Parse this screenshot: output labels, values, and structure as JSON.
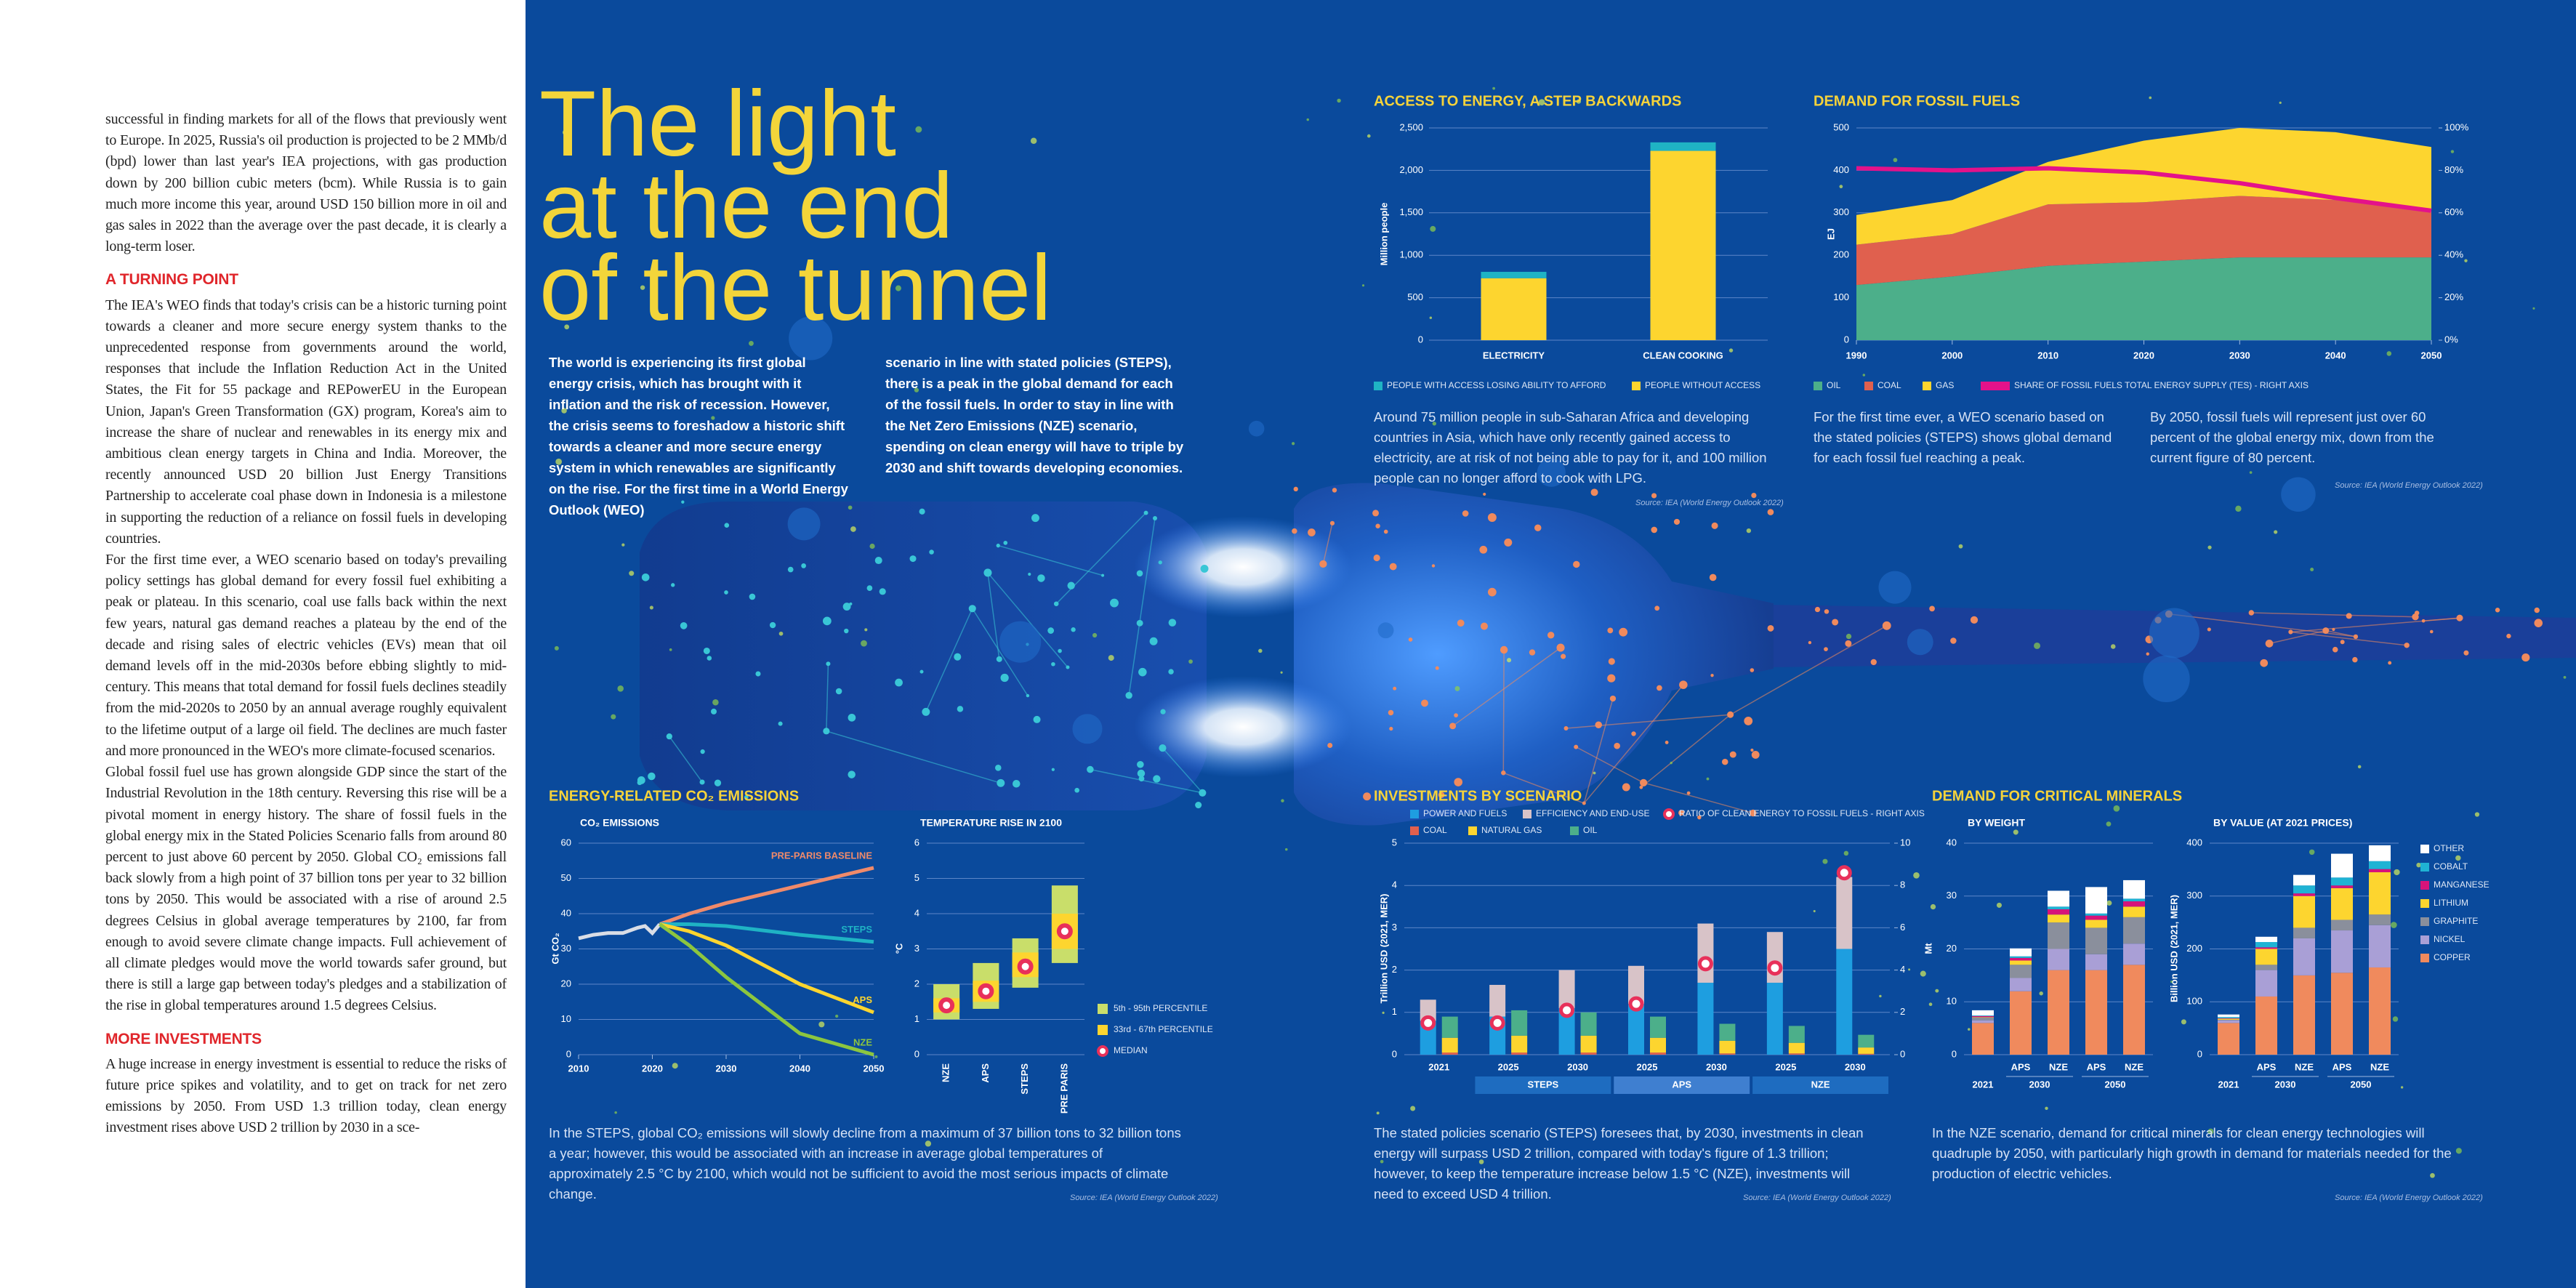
{
  "left_column": {
    "paragraphs": [
      "successful in finding markets for all of the flows that previously went to Europe. In 2025, Russia's oil production is projected to be 2 MMb/d (bpd) lower than last year's IEA projections, with gas production down by 200 billion cubic meters (bcm). While Russia is to gain much more income this year, around USD 150 billion more in oil and gas sales in 2022 than the average over the past decade, it is clearly a long-term loser.",
      {
        "heading": "A TURNING POINT"
      },
      "The IEA's WEO finds that today's crisis can be a historic turning point towards a cleaner and more secure energy system thanks to the unprecedented response from governments around the world, responses that include the Inflation Reduction Act in the United States, the Fit for 55 package and REPowerEU in the European Union, Japan's Green Transformation (GX) program, Korea's aim to increase the share of nuclear and renewables in its energy mix and ambitious clean energy targets in China and India. Moreover, the recently announced USD 20 billion Just Energy Transitions Partnership to accelerate coal phase down in Indonesia is a milestone in supporting the reduction of a reliance on fossil fuels in developing countries.",
      "For the first time ever, a WEO scenario based on today's prevailing policy settings has global demand for every fossil fuel exhibiting a peak or plateau. In this scenario, coal use falls back within the next few years, natural gas demand reaches a plateau by the end of the decade and rising sales of electric vehicles (EVs) mean that oil demand levels off in the mid-2030s before ebbing slightly to mid-century. This means that total demand for fossil fuels declines steadily from the mid-2020s to 2050 by an annual average roughly equivalent to the lifetime output of a large oil field. The declines are much faster and more pronounced in the WEO's more climate-focused scenarios.",
      "Global fossil fuel use has grown alongside GDP since the start of the Industrial Revolution in the 18th century. Reversing this rise will be a pivotal moment in energy history. The share of fossil fuels in the global energy mix in the Stated Policies Scenario falls from around 80 percent to just above 60 percent by 2050. Global CO₂ emissions fall back slowly from a high point of 37 billion tons per year to 32 billion tons by 2050. This would be associated with a rise of around 2.5 degrees Celsius in global average temperatures by 2100, far from enough to avoid severe climate change impacts. Full achievement of all climate pledges would move the world towards safer ground, but there is still a large gap between today's pledges and a stabilization of the rise in global temperatures around 1.5 degrees Celsius.",
      {
        "heading": "MORE INVESTMENTS"
      },
      "A huge increase in energy investment is essential to reduce the risks of future price spikes and volatility, and to get on track for net zero emissions by 2050. From USD 1.3 trillion today, clean energy investment rises above USD 2 trillion by 2030 in a sce-"
    ]
  },
  "headline": [
    "The light",
    "at the end",
    "of the tunnel"
  ],
  "intro": [
    "The world is experiencing its first global energy crisis, which has brought with it inflation and the risk of recession. However, the crisis seems to foreshadow a historic shift towards a cleaner and more secure energy system in which renewables are significantly on the rise. For the first time in a World Energy Outlook (WEO)",
    "scenario in line with stated policies (STEPS), there is a peak in the global demand for each of the fossil fuels. In order to stay in line with the Net Zero Emissions (NZE) scenario, spending on clean energy will have to triple by 2030 and shift towards developing economies."
  ],
  "source": "Source: IEA (World Energy Outlook 2022)",
  "access": {
    "type": "bar",
    "title": "ACCESS TO ENERGY, A STEP BACKWARDS",
    "y_label": "Million people",
    "categories": [
      "ELECTRICITY",
      "CLEAN COOKING"
    ],
    "series": [
      {
        "name": "PEOPLE WITH ACCESS LOSING ABILITY TO AFFORD",
        "color": "#1fb3c4",
        "values": [
          75,
          100
        ]
      },
      {
        "name": "PEOPLE WITHOUT ACCESS",
        "color": "#fdd52f",
        "values": [
          730,
          2230
        ]
      }
    ],
    "ylim": [
      0,
      2500
    ],
    "yticks": [
      0,
      500,
      {
        "value": 1000,
        "label": "1,000"
      },
      {
        "value": 1500,
        "label": "1,500"
      },
      {
        "value": 2000,
        "label": "2,000"
      },
      {
        "value": 2500,
        "label": "2,500"
      }
    ],
    "text": "Around 75 million people in sub-Saharan Africa and developing countries in Asia, which have only recently gained access to electricity, are at risk of not being able to pay for it, and 100 million people can no longer afford to cook with LPG."
  },
  "fossil": {
    "type": "area",
    "title": "DEMAND FOR FOSSIL FUELS",
    "y_label": "EJ",
    "x": [
      1990,
      2000,
      2010,
      2020,
      2030,
      2040,
      2050
    ],
    "series": [
      {
        "name": "OIL",
        "color": "#4caf8a",
        "values": [
          130,
          150,
          175,
          185,
          195,
          195,
          195
        ]
      },
      {
        "name": "COAL",
        "color": "#e0604e",
        "values": [
          95,
          100,
          145,
          140,
          145,
          135,
          105
        ]
      },
      {
        "name": "GAS",
        "color": "#fdd52f",
        "values": [
          70,
          80,
          100,
          145,
          160,
          160,
          155
        ]
      },
      {
        "name": "SHARE OF FOSSIL FUELS TOTAL ENERGY SUPPLY (TES) - RIGHT AXIS",
        "color": "#e4128a",
        "axis": "y2",
        "values": [
          81,
          80,
          81,
          79,
          74,
          67,
          61
        ]
      }
    ],
    "xlim": [
      1990,
      2050
    ],
    "xticks": [
      1990,
      2000,
      2010,
      2020,
      2030,
      2040,
      2050
    ],
    "ylim": [
      0,
      500
    ],
    "yticks": [
      0,
      100,
      200,
      300,
      400,
      500
    ],
    "y2lim": [
      0,
      100
    ],
    "y2ticks": [
      {
        "value": 0,
        "label": "0%"
      },
      {
        "value": 20,
        "label": "20%"
      },
      {
        "value": 40,
        "label": "40%"
      },
      {
        "value": 60,
        "label": "60%"
      },
      {
        "value": 80,
        "label": "80%"
      },
      {
        "value": 100,
        "label": "100%"
      }
    ],
    "texts": [
      "For the first time ever, a WEO scenario based on the stated policies (STEPS) shows global demand for each fossil fuel reaching a peak.",
      "By 2050, fossil fuels will represent just over 60 percent of the global energy mix, down from the current figure of 80 percent."
    ]
  },
  "co2": {
    "type": "line",
    "title": "ENERGY-RELATED CO₂ EMISSIONS",
    "subtitle": "CO₂ EMISSIONS",
    "y_label": "Gt CO₂",
    "series": [
      {
        "color": "#d9dde6",
        "x": [
          2010,
          2012,
          2014,
          2016,
          2018,
          2019,
          2020,
          2021
        ],
        "values": [
          33,
          34,
          34.5,
          34.5,
          36,
          36.5,
          34.5,
          37
        ]
      },
      {
        "name": "PRE-PARIS BASELINE",
        "color": "#f08a6a",
        "x": [
          2021,
          2025,
          2030,
          2040,
          2050
        ],
        "values": [
          37,
          40,
          43,
          48,
          53
        ]
      },
      {
        "name": "STEPS",
        "color": "#1fb3c4",
        "x": [
          2021,
          2025,
          2030,
          2040,
          2050
        ],
        "values": [
          37,
          37,
          36.5,
          34,
          32
        ]
      },
      {
        "name": "APS",
        "color": "#fdd52f",
        "x": [
          2021,
          2025,
          2030,
          2040,
          2050
        ],
        "values": [
          37,
          35,
          31,
          20,
          12
        ]
      },
      {
        "name": "NZE",
        "color": "#8cc63f",
        "x": [
          2021,
          2025,
          2030,
          2040,
          2050
        ],
        "values": [
          37,
          31,
          22,
          6,
          0
        ]
      }
    ],
    "xlim": [
      2010,
      2050
    ],
    "xticks": [
      2010,
      2020,
      2030,
      2040,
      2050
    ],
    "ylim": [
      0,
      60
    ],
    "yticks": [
      0,
      10,
      20,
      30,
      40,
      50,
      60
    ],
    "text": "In the STEPS, global CO₂ emissions will slowly decline from a maximum of 37 billion tons to 32 billion tons a year; however, this would be associated with an increase in average global temperatures of approximately 2.5 °C by 2100, which would not be sufficient to avoid the most serious impacts of climate change."
  },
  "temperature": {
    "type": "range",
    "subtitle": "TEMPERATURE RISE IN 2100",
    "y_label": "°C",
    "categories": [
      "NZE",
      "APS",
      "STEPS",
      "PRE PARIS"
    ],
    "p5": [
      1.0,
      1.3,
      1.9,
      2.6
    ],
    "p95": [
      2.0,
      2.6,
      3.3,
      4.8
    ],
    "p33": [
      1.2,
      1.5,
      2.2,
      3.0
    ],
    "p67": [
      1.6,
      2.1,
      2.9,
      4.0
    ],
    "median": [
      1.4,
      1.8,
      2.5,
      3.5
    ],
    "legend": [
      "5th - 95th PERCENTILE",
      "33rd - 67th PERCENTILE",
      "MEDIAN"
    ],
    "colors": [
      "#c9de6a",
      "#fdd52f",
      "#e8305a"
    ],
    "ylim": [
      0,
      6
    ],
    "yticks": [
      0,
      1,
      2,
      3,
      4,
      5,
      6
    ]
  },
  "investments": {
    "type": "grouped_stack",
    "title": "INVESTMENTS BY SCENARIO",
    "y_label": "Trillion USD (2021, MER)",
    "categories": [
      "2021",
      "2025",
      "2030",
      "2025",
      "2030",
      "2025",
      "2030"
    ],
    "scenarios": [
      "STEPS",
      "APS",
      "NZE"
    ],
    "clean": [
      {
        "name": "POWER AND FUELS",
        "color": "#1e9ee0",
        "values": [
          0.8,
          0.9,
          1.1,
          1.2,
          1.7,
          1.7,
          2.5
        ]
      },
      {
        "name": "EFFICIENCY AND END-USE",
        "color": "#d8c3c8",
        "values": [
          0.5,
          0.75,
          0.9,
          0.9,
          1.4,
          1.2,
          1.7
        ]
      }
    ],
    "fossil": [
      {
        "name": "COAL",
        "color": "#e0604e",
        "values": [
          0.05,
          0.05,
          0.05,
          0.05,
          0.03,
          0.03,
          0.02
        ]
      },
      {
        "name": "NATURAL GAS",
        "color": "#fdd52f",
        "values": [
          0.35,
          0.4,
          0.4,
          0.35,
          0.3,
          0.25,
          0.15
        ]
      },
      {
        "name": "OIL",
        "color": "#4caf8a",
        "values": [
          0.5,
          0.6,
          0.55,
          0.5,
          0.4,
          0.4,
          0.3
        ]
      }
    ],
    "ratio": {
      "name": "RATIO OF CLEAN ENERGY TO FOSSIL FUELS - RIGHT AXIS",
      "color": "#e8305a",
      "axis": "y2",
      "values": [
        1.5,
        1.5,
        2.1,
        2.4,
        4.3,
        4.1,
        8.6
      ]
    },
    "ylim": [
      0,
      5
    ],
    "yticks": [
      0,
      1,
      2,
      3,
      4,
      5
    ],
    "y2lim": [
      0,
      10
    ],
    "y2ticks": [
      0,
      2,
      4,
      6,
      8,
      10
    ],
    "text": "The stated policies scenario (STEPS) foresees that, by 2030, investments in clean energy will surpass USD 2 trillion, compared with today's figure of 1.3 trillion; however, to keep the temperature increase below 1.5 °C (NZE), investments will need to exceed USD 4 trillion."
  },
  "minerals": {
    "type": "stacked_bar",
    "title": "DEMAND FOR CRITICAL MINERALS",
    "categories": [
      null,
      "APS",
      "NZE",
      "APS",
      "NZE"
    ],
    "periods": [
      "2021",
      "2030",
      "2050"
    ],
    "series_names": [
      "COPPER",
      "NICKEL",
      "GRAPHITE",
      "LITHIUM",
      "MANGANESE",
      "COBALT",
      "OTHER"
    ],
    "colors": [
      "#f08a5d",
      "#a99fd6",
      "#8a8f9c",
      "#fdd52f",
      "#d6137a",
      "#1fb3d4",
      "#ffffff"
    ],
    "panels": [
      {
        "subtitle": "BY WEIGHT",
        "y_label": "Mt",
        "ylim": [
          0,
          40
        ],
        "yticks": [
          0,
          10,
          20,
          30,
          40
        ],
        "values": [
          [
            6,
            12,
            16,
            16,
            17
          ],
          [
            0.5,
            2.5,
            4,
            3,
            4
          ],
          [
            0.5,
            2.5,
            5,
            5,
            5
          ],
          [
            0.1,
            0.8,
            1.5,
            1.5,
            2
          ],
          [
            0.2,
            0.5,
            1,
            0.8,
            1
          ],
          [
            0.1,
            0.3,
            0.5,
            0.4,
            0.5
          ],
          [
            1,
            1.5,
            3,
            5,
            3.5
          ]
        ]
      },
      {
        "subtitle": "BY VALUE (AT 2021 PRICES)",
        "y_label": "Billion USD (2021, MER)",
        "ylim": [
          0,
          400
        ],
        "yticks": [
          0,
          100,
          200,
          300,
          400
        ],
        "values": [
          [
            60,
            110,
            150,
            155,
            165
          ],
          [
            5,
            50,
            70,
            80,
            80
          ],
          [
            1,
            10,
            20,
            20,
            20
          ],
          [
            2,
            30,
            60,
            60,
            80
          ],
          [
            1,
            3,
            5,
            5,
            6
          ],
          [
            2,
            10,
            15,
            15,
            15
          ],
          [
            5,
            10,
            20,
            45,
            30
          ]
        ]
      }
    ],
    "text": "In the NZE scenario, demand for critical minerals for clean energy technologies will quadruple by 2050, with particularly high growth in demand for materials needed for the production of electric vehicles."
  }
}
